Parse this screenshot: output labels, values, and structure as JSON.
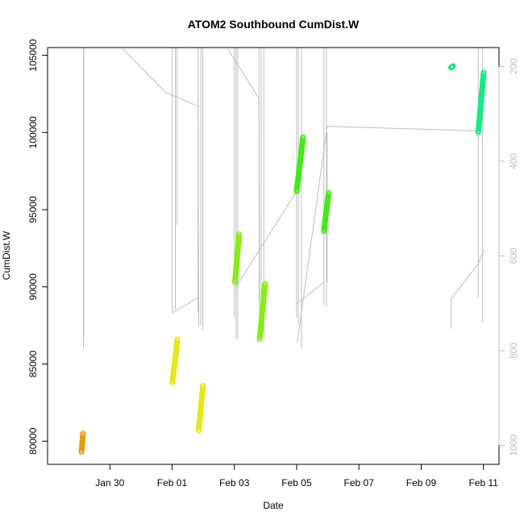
{
  "chart_data": {
    "type": "scatter",
    "title": "ATOM2 Southbound CumDist.W",
    "xlabel": "Date",
    "ylabel": "CumDist.W",
    "xlim": [
      "2016-01-28T00:00",
      "2016-02-11T12:00"
    ],
    "ylim": [
      78500,
      105500
    ],
    "y2lim": [
      1040,
      160
    ],
    "x_ticks": [
      {
        "date": "2016-01-30",
        "label": "Jan 30"
      },
      {
        "date": "2016-02-01",
        "label": "Feb 01"
      },
      {
        "date": "2016-02-03",
        "label": "Feb 03"
      },
      {
        "date": "2016-02-05",
        "label": "Feb 05"
      },
      {
        "date": "2016-02-07",
        "label": "Feb 07"
      },
      {
        "date": "2016-02-09",
        "label": "Feb 09"
      },
      {
        "date": "2016-02-11",
        "label": "Feb 11"
      }
    ],
    "y_ticks": [
      80000,
      85000,
      90000,
      95000,
      100000,
      105000
    ],
    "y2_ticks": [
      200,
      400,
      600,
      800,
      1000
    ],
    "grid": false,
    "series": [
      {
        "color": "#e69500",
        "start": "2016-01-29T02:10",
        "end": "2016-01-29T03:20",
        "y_start": 79300,
        "y_end": 80500
      },
      {
        "color": "#e6e600",
        "start": "2016-02-01T00:10",
        "end": "2016-02-01T04:10",
        "y_start": 83800,
        "y_end": 86600
      },
      {
        "color": "#e6e600",
        "start": "2016-02-01T20:30",
        "end": "2016-02-01T23:50",
        "y_start": 80700,
        "y_end": 83600
      },
      {
        "color": "#7ff000",
        "start": "2016-02-03T00:30",
        "end": "2016-02-03T03:40",
        "y_start": 90300,
        "y_end": 93400
      },
      {
        "color": "#7ff000",
        "start": "2016-02-03T19:30",
        "end": "2016-02-03T23:40",
        "y_start": 86600,
        "y_end": 90200
      },
      {
        "color": "#33ee00",
        "start": "2016-02-05T00:00",
        "end": "2016-02-05T05:00",
        "y_start": 96200,
        "y_end": 99700
      },
      {
        "color": "#33ee00",
        "start": "2016-02-05T21:00",
        "end": "2016-02-06T00:40",
        "y_start": 93600,
        "y_end": 96100
      },
      {
        "color": "#00ee7a",
        "start": "2016-02-09T23:00",
        "end": "2016-02-10T00:30",
        "y_start": 104200,
        "y_end": 104300
      },
      {
        "color": "#00ee7a",
        "start": "2016-02-10T20:00",
        "end": "2016-02-11T00:10",
        "y_start": 100000,
        "y_end": 103900
      }
    ],
    "background_traces": {
      "color": "#bebebe",
      "spikes": [
        {
          "x": "2016-01-29T03:40",
          "y_low": 86000
        },
        {
          "x": "2016-01-29T03:55",
          "y_low": 86800
        },
        {
          "x": "2016-02-01T00:05",
          "y_low": 88300
        },
        {
          "x": "2016-02-01T02:30",
          "y_low": 88500
        },
        {
          "x": "2016-02-01T03:40",
          "y_low": 94000
        },
        {
          "x": "2016-02-01T20:00",
          "y_low": 88300
        },
        {
          "x": "2016-02-01T22:10",
          "y_low": 87500
        },
        {
          "x": "2016-02-01T23:40",
          "y_low": 87200
        },
        {
          "x": "2016-02-03T00:00",
          "y_low": 88000
        },
        {
          "x": "2016-02-03T01:20",
          "y_low": 86600
        },
        {
          "x": "2016-02-03T02:40",
          "y_low": 86600
        },
        {
          "x": "2016-02-03T19:00",
          "y_low": 89000
        },
        {
          "x": "2016-02-03T20:40",
          "y_low": 86800
        },
        {
          "x": "2016-02-03T22:40",
          "y_low": 87000
        },
        {
          "x": "2016-02-05T00:00",
          "y_low": 88000
        },
        {
          "x": "2016-02-05T01:20",
          "y_low": 87600
        },
        {
          "x": "2016-02-05T03:40",
          "y_low": 86000
        },
        {
          "x": "2016-02-05T21:00",
          "y_low": 88800
        },
        {
          "x": "2016-02-05T23:00",
          "y_low": 88700
        },
        {
          "x": "2016-02-10T20:00",
          "y_low": 89300
        },
        {
          "x": "2016-02-10T23:20",
          "y_low": 87700
        }
      ],
      "paths": [
        [
          [
            "2016-01-30T10:00",
            105400
          ],
          [
            "2016-01-31T19:00",
            102600
          ],
          [
            "2016-02-01T20:00",
            101700
          ],
          [
            "2016-02-01T20:30",
            87400
          ]
        ],
        [
          [
            "2016-02-01T00:10",
            88300
          ],
          [
            "2016-02-01T20:00",
            89300
          ]
        ],
        [
          [
            "2016-02-02T19:00",
            105400
          ],
          [
            "2016-02-03T19:00",
            102200
          ],
          [
            "2016-02-03T19:30",
            86600
          ]
        ],
        [
          [
            "2016-02-03T00:40",
            89900
          ],
          [
            "2016-02-05T00:00",
            96200
          ]
        ],
        [
          [
            "2016-02-05T00:10",
            88900
          ],
          [
            "2016-02-05T21:00",
            90300
          ]
        ],
        [
          [
            "2016-02-05T00:30",
            86400
          ],
          [
            "2016-02-05T23:30",
            100400
          ],
          [
            "2016-02-06T00:30",
            100400
          ],
          [
            "2016-02-10T20:00",
            100100
          ]
        ],
        [
          [
            "2016-02-05T23:30",
            90300
          ],
          [
            "2016-02-05T23:30",
            100000
          ]
        ],
        [
          [
            "2016-02-09T23:00",
            87300
          ],
          [
            "2016-02-09T23:00",
            89200
          ],
          [
            "2016-02-10T20:00",
            91500
          ],
          [
            "2016-02-11T00:30",
            92400
          ]
        ]
      ]
    }
  }
}
